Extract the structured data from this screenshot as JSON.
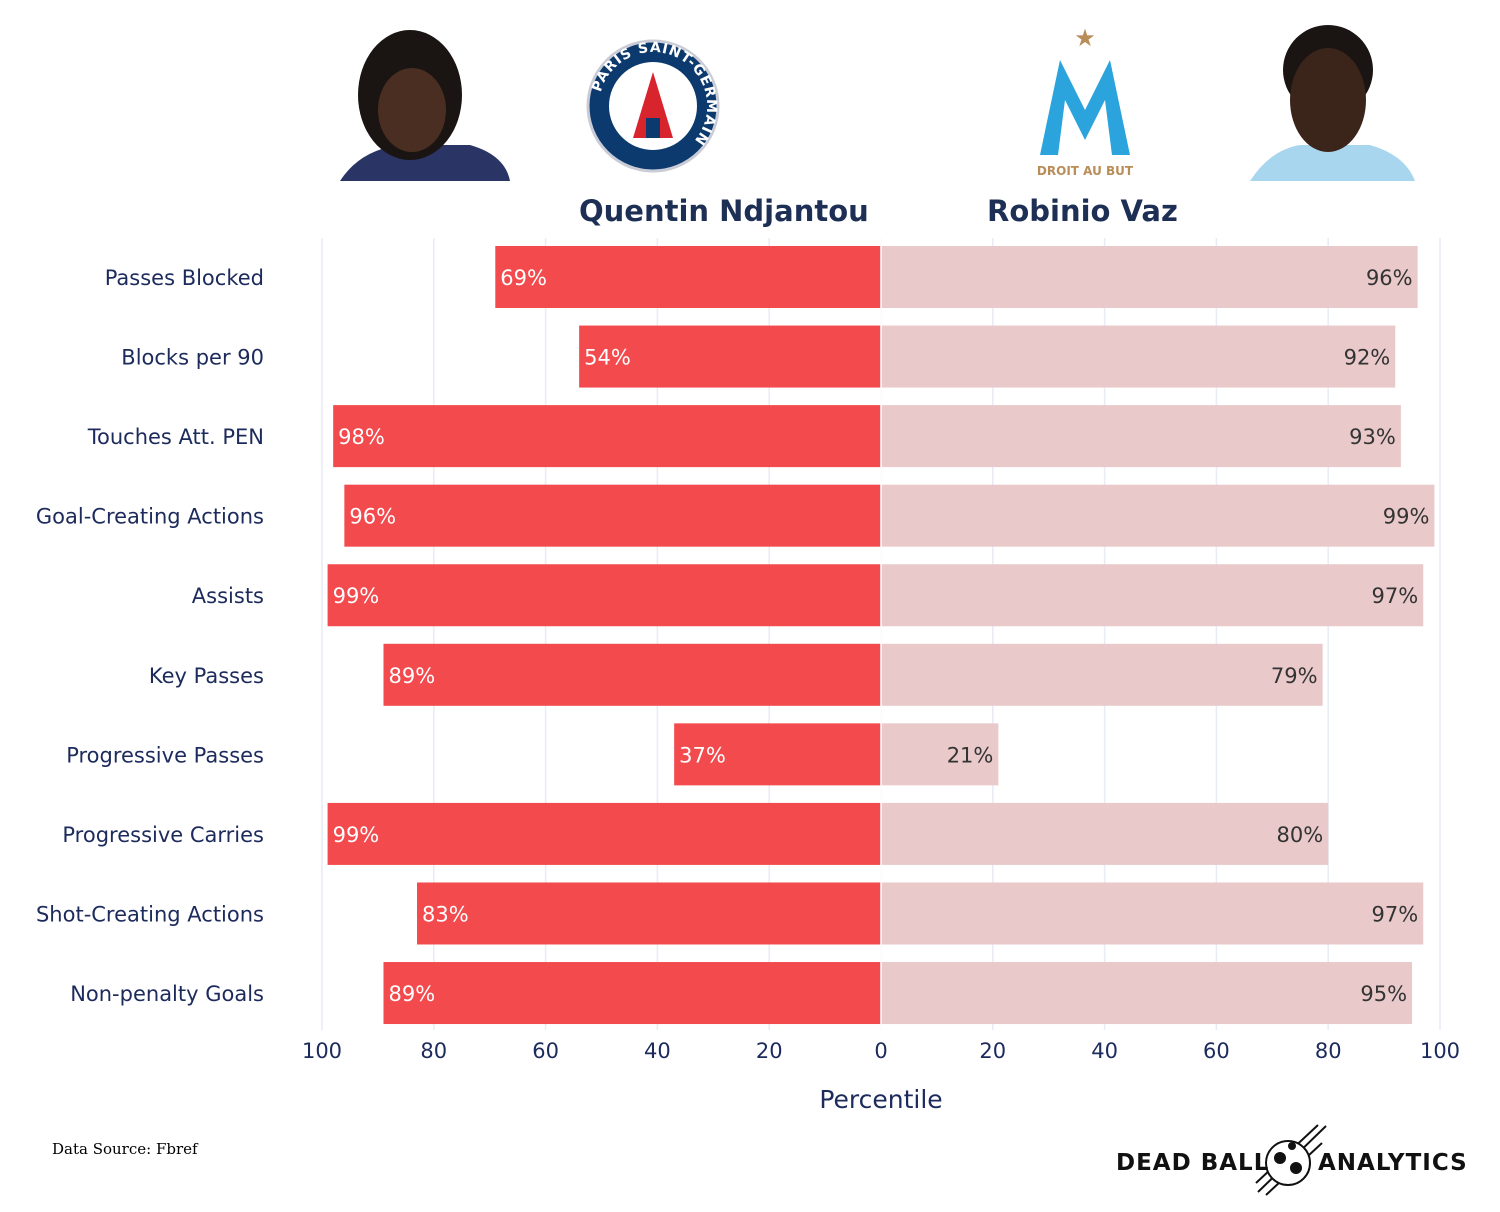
{
  "chart_data": {
    "type": "bar",
    "orientation": "horizontal-diverging",
    "categories": [
      "Passes Blocked",
      "Blocks per 90",
      "Touches Att. PEN",
      "Goal-Creating Actions",
      "Assists",
      "Key Passes",
      "Progressive Passes",
      "Progressive Carries",
      "Shot-Creating Actions",
      "Non-penalty Goals"
    ],
    "series": [
      {
        "name": "Quentin Ndjantou",
        "side": "left",
        "color": "#F24A4D",
        "values": [
          69,
          54,
          98,
          96,
          99,
          89,
          37,
          99,
          83,
          89
        ]
      },
      {
        "name": "Robinio Vaz",
        "side": "right",
        "color": "#E9C9CA",
        "values": [
          96,
          92,
          93,
          99,
          97,
          79,
          21,
          80,
          97,
          95
        ]
      }
    ],
    "xlabel": "Percentile",
    "xlim": [
      -100,
      100
    ],
    "xticks": [
      "100",
      "80",
      "60",
      "40",
      "20",
      "0",
      "20",
      "40",
      "60",
      "80",
      "100"
    ],
    "grid": true
  },
  "players": {
    "left": "Quentin Ndjantou",
    "right": "Robinio Vaz"
  },
  "clubs": {
    "left_logo_text": "PARIS SAINT-GERMAIN",
    "right_logo_text": "DROIT AU BUT"
  },
  "footer": {
    "source": "Data Source: Fbref",
    "brand_left": "DEAD BALL",
    "brand_right": "ANALYTICS"
  }
}
